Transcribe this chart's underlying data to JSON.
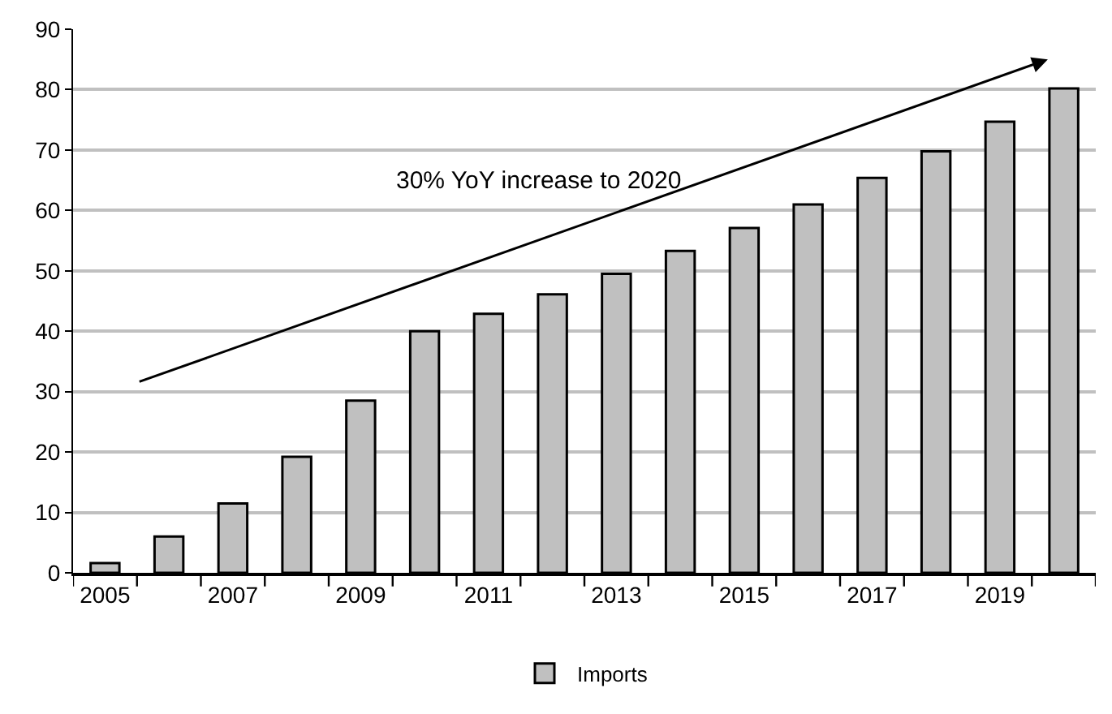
{
  "chart_data": {
    "type": "bar",
    "categories": [
      "2005",
      null,
      "2007",
      null,
      "2009",
      null,
      "2011",
      null,
      "2013",
      null,
      "2015",
      null,
      "2017",
      null,
      "2019",
      null
    ],
    "series": [
      {
        "name": "Imports",
        "color": "#c0c0c0",
        "values": [
          1.6,
          6.0,
          11.5,
          19.2,
          28.5,
          40.0,
          42.9,
          46.1,
          49.5,
          53.3,
          57.1,
          61.0,
          65.4,
          69.8,
          74.7,
          80.2
        ]
      }
    ],
    "ylim": [
      0,
      90
    ],
    "yticks": [
      0,
      10,
      20,
      30,
      40,
      50,
      60,
      70,
      80,
      90
    ],
    "grid": "y",
    "legend": "bottom",
    "annotations": [
      "30% YoY increase to 2020"
    ]
  }
}
